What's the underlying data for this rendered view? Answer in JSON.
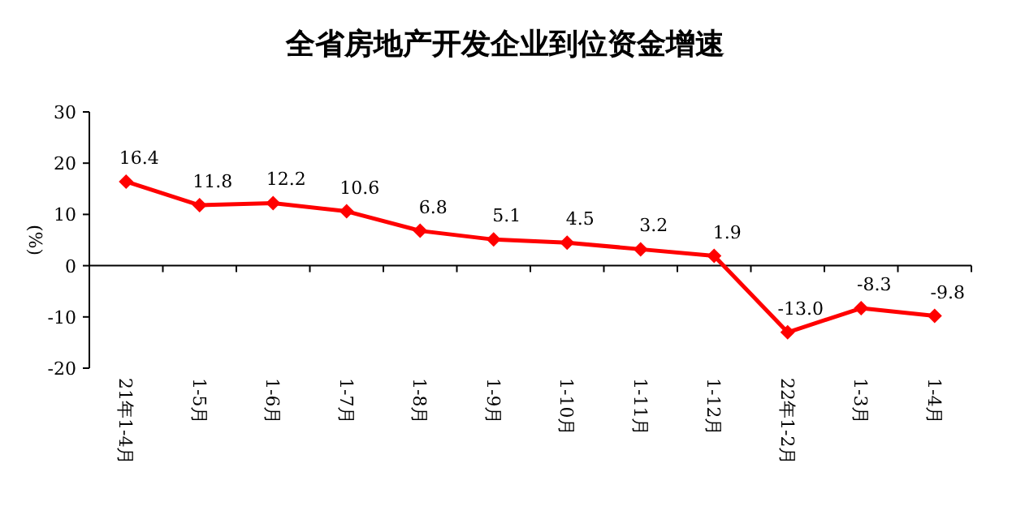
{
  "chart_data": {
    "type": "line",
    "title": "全省房地产开发企业到位资金增速",
    "ylabel": "(%)",
    "categories": [
      "21年1-4月",
      "1-5月",
      "1-6月",
      "1-7月",
      "1-8月",
      "1-9月",
      "1-10月",
      "1-11月",
      "1-12月",
      "22年1-2月",
      "1-3月",
      "1-4月"
    ],
    "series": [
      {
        "color": "#ff0000",
        "values": [
          16.4,
          11.8,
          12.2,
          10.6,
          6.8,
          5.1,
          4.5,
          3.2,
          1.9,
          -13.0,
          -8.3,
          -9.8
        ]
      }
    ],
    "value_labels": [
      "16.4",
      "11.8",
      "12.2",
      "10.6",
      "6.8",
      "5.1",
      "4.5",
      "3.2",
      "1.9",
      "-13.0",
      "-8.3",
      "-9.8"
    ],
    "ylim": [
      -20,
      30
    ],
    "yticks": [
      -20,
      -10,
      0,
      10,
      20,
      30
    ],
    "marker": "diamond",
    "line_style": "solid"
  }
}
